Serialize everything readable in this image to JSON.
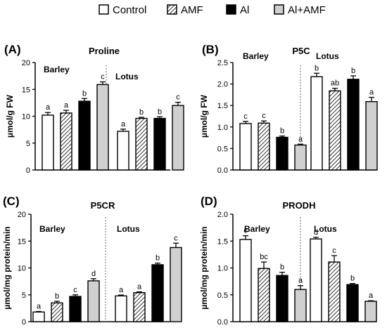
{
  "legend": [
    {
      "label": "Control",
      "fill": "white"
    },
    {
      "label": "AMF",
      "fill": "hatch"
    },
    {
      "label": "Al",
      "fill": "black"
    },
    {
      "label": "Al+AMF",
      "fill": "gray"
    }
  ],
  "colors": {
    "control": "#ffffff",
    "al": "#000000",
    "al_amf": "#d0d0d0",
    "hatch": "#000000",
    "divider": "#666666"
  },
  "chart_data": [
    {
      "type": "bar",
      "panel_letter": "(A)",
      "title": "Proline",
      "ylabel": "µmol/g FW",
      "ylim": [
        0,
        20
      ],
      "yticks": [
        "0",
        "5",
        "10",
        "15",
        "20"
      ],
      "groups": [
        "Barley",
        "Lotus"
      ],
      "series": [
        {
          "name": "Control",
          "values": [
            10.2,
            7.2
          ],
          "errors": [
            0.5,
            0.4
          ],
          "letters": [
            "a",
            "a"
          ]
        },
        {
          "name": "AMF",
          "values": [
            10.6,
            9.6
          ],
          "errors": [
            0.5,
            0.2
          ],
          "letters": [
            "a",
            "b"
          ]
        },
        {
          "name": "Al",
          "values": [
            12.8,
            9.6
          ],
          "errors": [
            0.5,
            0.3
          ],
          "letters": [
            "b",
            "b"
          ]
        },
        {
          "name": "Al+AMF",
          "values": [
            15.9,
            12.0
          ],
          "errors": [
            0.5,
            0.6
          ],
          "letters": [
            "c",
            "c"
          ]
        }
      ]
    },
    {
      "type": "bar",
      "panel_letter": "(B)",
      "title": "P5C",
      "ylabel": "µmol/g FW",
      "ylim": [
        0,
        2.5
      ],
      "yticks": [
        "0.0",
        "0.5",
        "1.0",
        "1.5",
        "2.0",
        "2.5"
      ],
      "groups": [
        "Barley",
        "Lotus"
      ],
      "series": [
        {
          "name": "Control",
          "values": [
            1.08,
            2.17
          ],
          "errors": [
            0.05,
            0.08
          ],
          "letters": [
            "c",
            "b"
          ]
        },
        {
          "name": "AMF",
          "values": [
            1.09,
            1.84
          ],
          "errors": [
            0.05,
            0.06
          ],
          "letters": [
            "c",
            "ab"
          ]
        },
        {
          "name": "Al",
          "values": [
            0.76,
            2.11
          ],
          "errors": [
            0.03,
            0.08
          ],
          "letters": [
            "b",
            "b"
          ]
        },
        {
          "name": "Al+AMF",
          "values": [
            0.58,
            1.59
          ],
          "errors": [
            0.02,
            0.1
          ],
          "letters": [
            "a",
            "a"
          ]
        }
      ]
    },
    {
      "type": "bar",
      "panel_letter": "(C)",
      "title": "P5CR",
      "ylabel": "µmol/mg protein/min",
      "ylim": [
        0,
        20
      ],
      "yticks": [
        "0",
        "5",
        "10",
        "15",
        "20"
      ],
      "groups": [
        "Barley",
        "Lotus"
      ],
      "series": [
        {
          "name": "Control",
          "values": [
            1.8,
            4.8
          ],
          "errors": [
            0.1,
            0.15
          ],
          "letters": [
            "a",
            "a"
          ]
        },
        {
          "name": "AMF",
          "values": [
            3.5,
            5.4
          ],
          "errors": [
            0.3,
            0.15
          ],
          "letters": [
            "b",
            "a"
          ]
        },
        {
          "name": "Al",
          "values": [
            4.7,
            10.6
          ],
          "errors": [
            0.3,
            0.3
          ],
          "letters": [
            "c",
            "b"
          ]
        },
        {
          "name": "Al+AMF",
          "values": [
            7.6,
            13.8
          ],
          "errors": [
            0.4,
            0.8
          ],
          "letters": [
            "d",
            "c"
          ]
        }
      ]
    },
    {
      "type": "bar",
      "panel_letter": "(D)",
      "title": "PRODH",
      "ylabel": "µmol/mg protein/min",
      "ylim": [
        0,
        2.0
      ],
      "yticks": [
        "0.0",
        "0.5",
        "1.0",
        "1.5",
        "2.0"
      ],
      "groups": [
        "Barley",
        "Lotus"
      ],
      "series": [
        {
          "name": "Control",
          "values": [
            1.53,
            1.54
          ],
          "errors": [
            0.07,
            0.03
          ],
          "letters": [
            "c",
            "d"
          ]
        },
        {
          "name": "AMF",
          "values": [
            0.99,
            1.11
          ],
          "errors": [
            0.12,
            0.12
          ],
          "letters": [
            "bc",
            "c"
          ]
        },
        {
          "name": "Al",
          "values": [
            0.86,
            0.69
          ],
          "errors": [
            0.06,
            0.02
          ],
          "letters": [
            "b",
            "b"
          ]
        },
        {
          "name": "Al+AMF",
          "values": [
            0.6,
            0.38
          ],
          "errors": [
            0.07,
            0.01
          ],
          "letters": [
            "a",
            "a"
          ]
        }
      ]
    }
  ]
}
